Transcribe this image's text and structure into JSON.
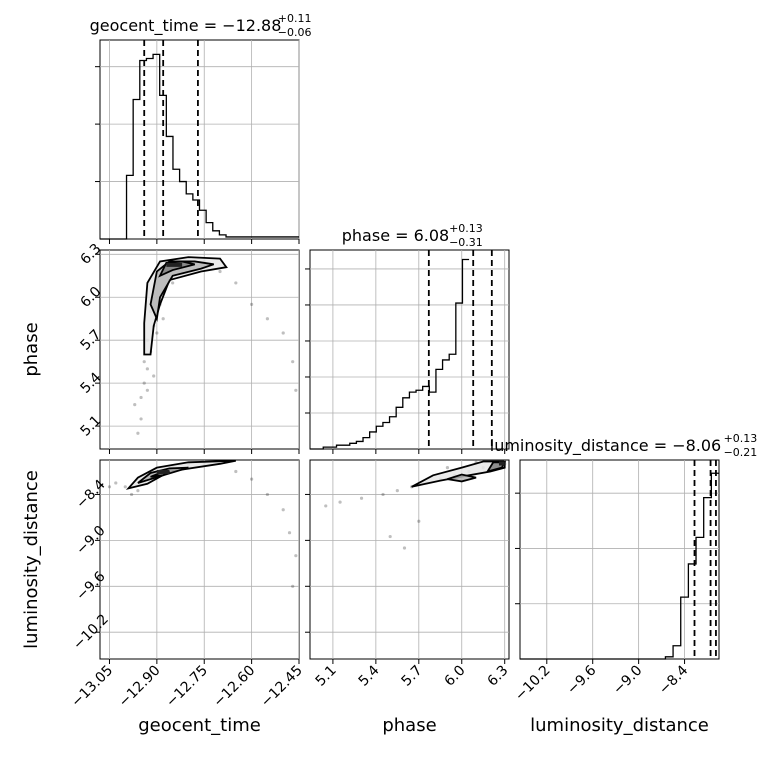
{
  "chart_data": {
    "type": "corner",
    "parameters": [
      "geocent_time",
      "phase",
      "luminosity_distance"
    ],
    "ranges": {
      "geocent_time": [
        -13.08,
        -12.45
      ],
      "phase": [
        4.94,
        6.33
      ],
      "luminosity_distance": [
        -10.55,
        -7.95
      ]
    },
    "ticks": {
      "geocent_time": [
        -13.05,
        -12.9,
        -12.75,
        -12.6,
        -12.45
      ],
      "phase": [
        5.1,
        5.4,
        5.7,
        6.0,
        6.3
      ],
      "luminosity_distance": [
        -10.2,
        -9.6,
        -9.0,
        -8.4
      ]
    },
    "tick_labels": {
      "geocent_time": [
        "−13.05",
        "−12.90",
        "−12.75",
        "−12.60",
        "−12.45"
      ],
      "phase": [
        "5.1",
        "5.4",
        "5.7",
        "6.0",
        "6.3"
      ],
      "luminosity_distance": [
        "−10.2",
        "−9.6",
        "−9.0",
        "−8.4"
      ]
    },
    "titles": [
      {
        "param": "geocent_time",
        "main": "geocent_time = −12.88",
        "plus": "+0.11",
        "minus": "−0.06"
      },
      {
        "param": "phase",
        "main": "phase = 6.08",
        "plus": "+0.13",
        "minus": "−0.31"
      },
      {
        "param": "luminosity_distance",
        "main": "luminosity_distance = −8.06",
        "plus": "+0.13",
        "minus": "−0.21"
      }
    ],
    "quantiles": {
      "geocent_time": [
        -12.94,
        -12.88,
        -12.77
      ],
      "phase": [
        5.77,
        6.08,
        6.21
      ],
      "luminosity_distance": [
        -8.27,
        -8.06,
        -7.99
      ]
    },
    "histograms": {
      "geocent_time": {
        "bin_start": -13.08,
        "bin_width": 0.021,
        "counts": [
          0,
          0,
          0,
          0,
          0.31,
          0.68,
          0.87,
          0.88,
          0.9,
          0.7,
          0.5,
          0.34,
          0.28,
          0.22,
          0.19,
          0.14,
          0.08,
          0.04,
          0.02,
          0.01,
          0.01,
          0.01,
          0.01,
          0.01,
          0.01,
          0.01,
          0.01,
          0.01,
          0.01,
          0.01
        ]
      },
      "phase": {
        "bin_start": 4.94,
        "bin_width": 0.0463,
        "counts": [
          0,
          0,
          0.01,
          0.01,
          0.02,
          0.02,
          0.03,
          0.04,
          0.06,
          0.09,
          0.12,
          0.14,
          0.17,
          0.22,
          0.27,
          0.3,
          0.31,
          0.33,
          0.3,
          0.42,
          0.47,
          0.5,
          0.77,
          1.0
        ]
      },
      "luminosity_distance": {
        "bin_start": -10.55,
        "bin_width": 0.1,
        "counts": [
          0,
          0,
          0,
          0,
          0,
          0,
          0,
          0,
          0,
          0,
          0,
          0,
          0,
          0,
          0,
          0,
          0,
          0,
          0,
          0.01,
          0.06,
          0.28,
          0.43,
          0.55,
          0.73,
          0.84
        ]
      }
    },
    "hist_ylim": {
      "geocent_time": [
        0,
        0.97
      ],
      "phase": [
        0,
        1.05
      ],
      "luminosity_distance": [
        0,
        0.9
      ]
    },
    "hist_ticks": {
      "geocent_time": [
        0.28,
        0.56,
        0.84
      ],
      "phase": [
        0.19,
        0.38,
        0.57,
        0.76,
        0.95
      ],
      "luminosity_distance": [
        0.25,
        0.5,
        0.75
      ]
    },
    "pairs": [
      {
        "x": "geocent_time",
        "y": "phase",
        "scatter": [
          [
            -12.95,
            5.15
          ],
          [
            -12.95,
            5.3
          ],
          [
            -12.94,
            5.4
          ],
          [
            -12.94,
            5.55
          ],
          [
            -12.93,
            5.5
          ],
          [
            -12.93,
            5.7
          ],
          [
            -12.92,
            5.62
          ],
          [
            -12.92,
            5.9
          ],
          [
            -12.91,
            5.8
          ],
          [
            -12.9,
            5.75
          ],
          [
            -12.9,
            6.0
          ],
          [
            -12.89,
            5.95
          ],
          [
            -12.88,
            5.85
          ],
          [
            -12.87,
            6.15
          ],
          [
            -12.85,
            6.1
          ],
          [
            -12.83,
            6.2
          ],
          [
            -12.8,
            6.22
          ],
          [
            -12.75,
            6.25
          ],
          [
            -12.7,
            6.18
          ],
          [
            -12.65,
            6.1
          ],
          [
            -12.6,
            5.95
          ],
          [
            -12.55,
            5.85
          ],
          [
            -12.5,
            5.75
          ],
          [
            -12.47,
            5.55
          ],
          [
            -12.46,
            5.35
          ],
          [
            -12.96,
            5.05
          ],
          [
            -12.97,
            5.25
          ],
          [
            -12.93,
            5.35
          ],
          [
            -12.91,
            5.45
          ]
        ],
        "contours": [
          [
            [
              -12.94,
              5.82
            ],
            [
              -12.93,
              6.1
            ],
            [
              -12.89,
              6.25
            ],
            [
              -12.8,
              6.28
            ],
            [
              -12.7,
              6.27
            ],
            [
              -12.68,
              6.21
            ],
            [
              -12.76,
              6.18
            ],
            [
              -12.86,
              6.12
            ],
            [
              -12.89,
              5.95
            ],
            [
              -12.91,
              5.8
            ],
            [
              -12.92,
              5.6
            ],
            [
              -12.94,
              5.6
            ],
            [
              -12.94,
              5.82
            ]
          ],
          [
            [
              -12.92,
              5.95
            ],
            [
              -12.9,
              6.18
            ],
            [
              -12.86,
              6.25
            ],
            [
              -12.78,
              6.25
            ],
            [
              -12.72,
              6.23
            ],
            [
              -12.76,
              6.2
            ],
            [
              -12.85,
              6.15
            ],
            [
              -12.89,
              6.0
            ],
            [
              -12.9,
              5.85
            ],
            [
              -12.92,
              5.95
            ]
          ],
          [
            [
              -12.89,
              6.15
            ],
            [
              -12.87,
              6.24
            ],
            [
              -12.82,
              6.25
            ],
            [
              -12.78,
              6.23
            ],
            [
              -12.85,
              6.19
            ],
            [
              -12.89,
              6.15
            ]
          ]
        ],
        "core": [
          [
            -12.87,
            6.24
          ],
          [
            -12.82,
            6.22
          ]
        ]
      },
      {
        "x": "geocent_time",
        "y": "luminosity_distance",
        "scatter": [
          [
            -13.03,
            -8.25
          ],
          [
            -13.0,
            -8.3
          ],
          [
            -12.98,
            -8.4
          ],
          [
            -12.96,
            -8.35
          ],
          [
            -12.94,
            -8.2
          ],
          [
            -12.92,
            -8.15
          ],
          [
            -12.9,
            -8.12
          ],
          [
            -12.88,
            -8.1
          ],
          [
            -12.85,
            -8.05
          ],
          [
            -12.8,
            -8.0
          ],
          [
            -12.75,
            -8.0
          ],
          [
            -12.7,
            -7.98
          ],
          [
            -12.65,
            -8.1
          ],
          [
            -12.6,
            -8.2
          ],
          [
            -12.55,
            -8.4
          ],
          [
            -12.5,
            -8.6
          ],
          [
            -12.48,
            -8.9
          ],
          [
            -12.46,
            -9.2
          ],
          [
            -12.47,
            -9.6
          ],
          [
            -13.05,
            -8.3
          ]
        ],
        "contours": [
          [
            [
              -12.99,
              -8.32
            ],
            [
              -12.96,
              -8.18
            ],
            [
              -12.9,
              -8.05
            ],
            [
              -12.8,
              -7.98
            ],
            [
              -12.65,
              -7.96
            ],
            [
              -12.7,
              -8.0
            ],
            [
              -12.86,
              -8.1
            ],
            [
              -12.93,
              -8.26
            ],
            [
              -12.99,
              -8.32
            ]
          ],
          [
            [
              -12.96,
              -8.25
            ],
            [
              -12.92,
              -8.12
            ],
            [
              -12.86,
              -8.06
            ],
            [
              -12.8,
              -8.05
            ],
            [
              -12.88,
              -8.15
            ],
            [
              -12.96,
              -8.25
            ]
          ],
          [
            [
              -12.92,
              -8.17
            ],
            [
              -12.89,
              -8.12
            ],
            [
              -12.86,
              -8.1
            ],
            [
              -12.88,
              -8.15
            ],
            [
              -12.92,
              -8.17
            ]
          ]
        ],
        "core": [
          [
            -12.9,
            -8.12
          ],
          [
            -12.86,
            -8.08
          ]
        ]
      },
      {
        "x": "phase",
        "y": "luminosity_distance",
        "scatter": [
          [
            5.05,
            -8.55
          ],
          [
            5.15,
            -8.5
          ],
          [
            5.3,
            -8.45
          ],
          [
            5.45,
            -8.4
          ],
          [
            5.55,
            -8.35
          ],
          [
            5.65,
            -8.3
          ],
          [
            5.75,
            -8.25
          ],
          [
            5.85,
            -8.2
          ],
          [
            5.95,
            -8.15
          ],
          [
            6.05,
            -8.1
          ],
          [
            6.15,
            -8.05
          ],
          [
            6.25,
            -8.02
          ],
          [
            6.3,
            -8.0
          ],
          [
            5.5,
            -8.95
          ],
          [
            5.6,
            -9.1
          ],
          [
            5.7,
            -8.75
          ],
          [
            5.9,
            -8.05
          ],
          [
            6.1,
            -7.98
          ]
        ],
        "contours": [
          [
            [
              5.65,
              -8.3
            ],
            [
              5.85,
              -8.22
            ],
            [
              6.05,
              -8.15
            ],
            [
              6.2,
              -8.1
            ],
            [
              6.3,
              -8.05
            ],
            [
              6.3,
              -7.97
            ],
            [
              6.15,
              -7.97
            ],
            [
              6.0,
              -8.05
            ],
            [
              5.8,
              -8.15
            ],
            [
              5.65,
              -8.3
            ]
          ],
          [
            [
              5.9,
              -8.2
            ],
            [
              6.0,
              -8.14
            ],
            [
              6.1,
              -8.18
            ],
            [
              6.0,
              -8.23
            ],
            [
              5.9,
              -8.2
            ]
          ],
          [
            [
              6.18,
              -8.1
            ],
            [
              6.28,
              -8.05
            ],
            [
              6.3,
              -7.98
            ],
            [
              6.22,
              -7.98
            ],
            [
              6.18,
              -8.1
            ]
          ]
        ],
        "core": [
          [
            6.26,
            -8.0
          ],
          [
            6.3,
            -7.97
          ]
        ]
      }
    ],
    "xlabels": [
      "geocent_time",
      "phase",
      "luminosity_distance"
    ],
    "ylabels": [
      "",
      "phase",
      "luminosity_distance"
    ],
    "grid": true
  }
}
